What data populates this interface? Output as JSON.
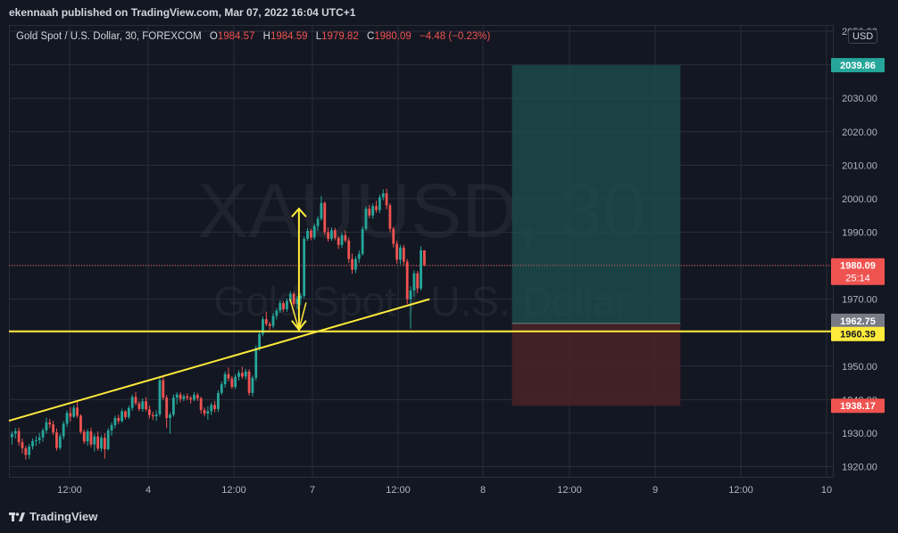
{
  "header": {
    "published_text": "ekennaah published on TradingView.com, Mar 07, 2022 16:04 UTC+1"
  },
  "legend": {
    "symbol": "Gold Spot / U.S. Dollar, 30, FOREXCOM",
    "o_label": "O",
    "o": "1984.57",
    "h_label": "H",
    "h": "1984.59",
    "l_label": "L",
    "l": "1979.82",
    "c_label": "C",
    "c": "1980.09",
    "change": "−4.48 (−0.23%)"
  },
  "watermark": {
    "ticker": "XAUUSD, 30",
    "name": "Gold Spot / U.S. Dollar"
  },
  "currency": "USD",
  "footer": {
    "brand": "TradingView"
  },
  "colors": {
    "up": "#26a69a",
    "down": "#ef5350",
    "trendline": "#ffeb3b",
    "target_zone": "#1d4d4f",
    "stop_zone": "#4a2227",
    "background": "#131722",
    "grid": "#2a2e39"
  },
  "chart_data": {
    "type": "candlestick",
    "symbol": "Gold Spot / U.S. Dollar",
    "interval": "30",
    "ylim": [
      1915,
      2055
    ],
    "y_ticks": [
      1920,
      1930,
      1940,
      1950,
      1960,
      1970,
      1980,
      1990,
      2000,
      2010,
      2020,
      2030,
      2040,
      2050
    ],
    "x_tick_labels": [
      "12:00",
      "4",
      "12:00",
      "7",
      "12:00",
      "8",
      "12:00",
      "9",
      "12:00",
      "10"
    ],
    "price_labels": [
      {
        "text": "2039.86",
        "value": 2039.86,
        "color": "#26a69a",
        "text_color": "#ffffff"
      },
      {
        "text": "1980.09",
        "value": 1980.09,
        "color": "#ef5350",
        "text_color": "#ffffff",
        "sub": "25:14"
      },
      {
        "text": "1962.75",
        "value": 1962.75,
        "color": "#787b86",
        "text_color": "#ffffff"
      },
      {
        "text": "1960.39",
        "value": 1960.39,
        "color": "#ffeb3b",
        "text_color": "#131722"
      },
      {
        "text": "1938.17",
        "value": 1938.17,
        "color": "#ef5350",
        "text_color": "#ffffff"
      }
    ],
    "last_price": 1980.09,
    "horizontal_line": 1960.39,
    "trendline": {
      "from": {
        "bar": 0,
        "price": 1933.7
      },
      "to": {
        "bar": 122,
        "price": 1970.0
      }
    },
    "measure_arrow": {
      "bar": 84,
      "from": 1960.39,
      "to": 1997.0
    },
    "position": {
      "entry": 1962.75,
      "target": 2039.86,
      "stop": 1938.17,
      "start_bar": 146,
      "end_bar": 195
    },
    "candles": [
      [
        1928.8,
        1930.6,
        1926.5,
        1929.8
      ],
      [
        1929.8,
        1931.5,
        1928.4,
        1930.6
      ],
      [
        1930.6,
        1931.6,
        1926.2,
        1927.3
      ],
      [
        1927.3,
        1928.4,
        1923.9,
        1925.5
      ],
      [
        1925.5,
        1926.2,
        1922.1,
        1923.5
      ],
      [
        1923.5,
        1926.8,
        1922.3,
        1926.0
      ],
      [
        1926.0,
        1928.4,
        1925.1,
        1927.6
      ],
      [
        1927.6,
        1929.1,
        1926.2,
        1927.9
      ],
      [
        1927.9,
        1930.1,
        1926.8,
        1928.7
      ],
      [
        1928.7,
        1931.5,
        1927.4,
        1930.8
      ],
      [
        1930.8,
        1934.6,
        1929.8,
        1933.2
      ],
      [
        1933.2,
        1934.3,
        1931.5,
        1932.6
      ],
      [
        1932.6,
        1933.7,
        1929.4,
        1930.2
      ],
      [
        1930.2,
        1931.4,
        1924.8,
        1925.6
      ],
      [
        1925.6,
        1929.8,
        1925.0,
        1929.0
      ],
      [
        1929.0,
        1933.6,
        1928.1,
        1932.8
      ],
      [
        1932.8,
        1936.8,
        1931.8,
        1936.0
      ],
      [
        1936.0,
        1937.8,
        1933.5,
        1934.9
      ],
      [
        1934.9,
        1938.4,
        1934.5,
        1937.6
      ],
      [
        1937.6,
        1939.8,
        1934.5,
        1935.2
      ],
      [
        1935.2,
        1935.6,
        1929.8,
        1930.4
      ],
      [
        1930.4,
        1931.1,
        1926.8,
        1927.5
      ],
      [
        1927.5,
        1931.2,
        1926.2,
        1930.5
      ],
      [
        1930.5,
        1931.6,
        1925.8,
        1926.6
      ],
      [
        1926.6,
        1929.8,
        1924.5,
        1929.0
      ],
      [
        1929.0,
        1930.5,
        1924.7,
        1925.4
      ],
      [
        1925.4,
        1929.4,
        1924.5,
        1928.6
      ],
      [
        1928.6,
        1930.0,
        1922.4,
        1925.2
      ],
      [
        1925.2,
        1931.5,
        1924.8,
        1930.8
      ],
      [
        1930.8,
        1933.2,
        1929.2,
        1932.4
      ],
      [
        1932.4,
        1935.2,
        1931.4,
        1934.5
      ],
      [
        1934.5,
        1935.5,
        1932.8,
        1933.6
      ],
      [
        1933.6,
        1937.3,
        1933.1,
        1936.5
      ],
      [
        1936.5,
        1936.8,
        1934.1,
        1934.8
      ],
      [
        1934.8,
        1938.2,
        1934.2,
        1937.5
      ],
      [
        1937.5,
        1941.5,
        1936.7,
        1940.8
      ],
      [
        1940.8,
        1942.3,
        1938.3,
        1938.9
      ],
      [
        1938.9,
        1939.6,
        1936.5,
        1937.2
      ],
      [
        1937.2,
        1940.4,
        1936.4,
        1939.5
      ],
      [
        1939.5,
        1940.8,
        1936.5,
        1937.1
      ],
      [
        1937.1,
        1938.2,
        1934.4,
        1935.4
      ],
      [
        1935.4,
        1936.4,
        1933.9,
        1935.0
      ],
      [
        1935.0,
        1936.8,
        1933.6,
        1935.6
      ],
      [
        1935.6,
        1946.8,
        1934.9,
        1945.8
      ],
      [
        1945.8,
        1947.3,
        1939.8,
        1940.6
      ],
      [
        1940.6,
        1941.4,
        1931.5,
        1934.5
      ],
      [
        1934.5,
        1936.2,
        1929.8,
        1935.5
      ],
      [
        1935.5,
        1941.6,
        1934.9,
        1940.6
      ],
      [
        1940.6,
        1942.2,
        1938.6,
        1941.5
      ],
      [
        1941.5,
        1942.2,
        1939.2,
        1940.2
      ],
      [
        1940.2,
        1941.6,
        1939.5,
        1941.0
      ],
      [
        1941.0,
        1941.8,
        1939.8,
        1940.5
      ],
      [
        1940.5,
        1941.1,
        1938.8,
        1940.0
      ],
      [
        1940.0,
        1942.2,
        1939.5,
        1941.4
      ],
      [
        1941.4,
        1942.0,
        1939.6,
        1940.4
      ],
      [
        1940.4,
        1940.9,
        1935.8,
        1936.9
      ],
      [
        1936.9,
        1937.7,
        1935.0,
        1935.8
      ],
      [
        1935.8,
        1938.0,
        1934.0,
        1936.5
      ],
      [
        1936.5,
        1939.1,
        1935.4,
        1938.4
      ],
      [
        1938.4,
        1939.6,
        1936.2,
        1937.2
      ],
      [
        1937.2,
        1942.8,
        1936.3,
        1942.0
      ],
      [
        1942.0,
        1945.4,
        1941.4,
        1944.6
      ],
      [
        1944.6,
        1948.4,
        1943.6,
        1947.6
      ],
      [
        1947.6,
        1949.6,
        1945.4,
        1946.3
      ],
      [
        1946.3,
        1947.0,
        1943.2,
        1943.8
      ],
      [
        1943.8,
        1947.6,
        1943.2,
        1946.8
      ],
      [
        1946.8,
        1948.8,
        1945.7,
        1948.0
      ],
      [
        1948.0,
        1949.8,
        1946.2,
        1946.9
      ],
      [
        1946.9,
        1949.2,
        1946.0,
        1948.4
      ],
      [
        1948.4,
        1949.1,
        1941.2,
        1942.0
      ],
      [
        1942.0,
        1947.2,
        1941.0,
        1946.5
      ],
      [
        1946.5,
        1956.2,
        1945.6,
        1955.4
      ],
      [
        1955.4,
        1960.5,
        1954.5,
        1959.6
      ],
      [
        1959.6,
        1964.8,
        1958.9,
        1964.0
      ],
      [
        1964.0,
        1966.3,
        1961.9,
        1962.6
      ],
      [
        1962.6,
        1963.2,
        1960.8,
        1962.0
      ],
      [
        1962.0,
        1965.8,
        1961.3,
        1965.0
      ],
      [
        1965.0,
        1967.4,
        1963.9,
        1966.6
      ],
      [
        1966.6,
        1969.6,
        1965.8,
        1968.8
      ],
      [
        1968.8,
        1969.4,
        1966.3,
        1967.0
      ],
      [
        1967.0,
        1970.3,
        1966.2,
        1969.5
      ],
      [
        1969.5,
        1972.4,
        1968.8,
        1971.6
      ],
      [
        1971.6,
        1972.2,
        1967.9,
        1968.6
      ],
      [
        1968.6,
        1971.0,
        1967.0,
        1970.2
      ],
      [
        1970.2,
        1971.8,
        1968.2,
        1971.0
      ],
      [
        1971.0,
        1988.8,
        1970.2,
        1988.0
      ],
      [
        1988.0,
        1991.2,
        1987.4,
        1990.4
      ],
      [
        1990.4,
        1991.0,
        1987.6,
        1988.4
      ],
      [
        1988.4,
        1992.6,
        1987.8,
        1991.8
      ],
      [
        1991.8,
        1994.8,
        1990.5,
        1994.0
      ],
      [
        1994.0,
        2000.8,
        1993.4,
        1998.7
      ],
      [
        1998.7,
        1999.2,
        1989.2,
        1990.0
      ],
      [
        1990.0,
        1991.4,
        1987.2,
        1988.0
      ],
      [
        1988.0,
        1991.4,
        1987.4,
        1990.6
      ],
      [
        1990.6,
        1991.3,
        1987.6,
        1988.3
      ],
      [
        1988.3,
        1988.9,
        1985.0,
        1986.2
      ],
      [
        1986.2,
        1989.8,
        1985.3,
        1989.1
      ],
      [
        1989.1,
        1990.5,
        1986.9,
        1987.5
      ],
      [
        1987.5,
        1988.4,
        1980.8,
        1982.0
      ],
      [
        1982.0,
        1983.6,
        1977.6,
        1978.8
      ],
      [
        1978.8,
        1982.8,
        1977.8,
        1982.0
      ],
      [
        1982.0,
        1984.6,
        1980.8,
        1983.5
      ],
      [
        1983.5,
        1991.8,
        1983.0,
        1991.0
      ],
      [
        1991.0,
        1997.7,
        1990.4,
        1997.0
      ],
      [
        1997.0,
        1998.2,
        1994.2,
        1995.0
      ],
      [
        1995.0,
        1998.6,
        1994.0,
        1997.8
      ],
      [
        1997.8,
        1999.4,
        1995.8,
        1996.6
      ],
      [
        1996.6,
        2001.2,
        1995.7,
        2000.4
      ],
      [
        2000.4,
        2002.8,
        1999.5,
        2001.6
      ],
      [
        2001.6,
        2003.0,
        1996.8,
        1998.0
      ],
      [
        1998.0,
        1998.6,
        1990.0,
        1991.0
      ],
      [
        1991.0,
        1991.6,
        1985.4,
        1986.5
      ],
      [
        1986.5,
        1987.4,
        1980.6,
        1981.8
      ],
      [
        1981.8,
        1986.2,
        1980.4,
        1985.4
      ],
      [
        1985.4,
        1986.2,
        1980.2,
        1981.2
      ],
      [
        1981.2,
        1982.0,
        1968.6,
        1970.0
      ],
      [
        1970.0,
        1973.8,
        1961.2,
        1972.6
      ],
      [
        1972.6,
        1978.6,
        1970.8,
        1977.7
      ],
      [
        1977.7,
        1978.4,
        1971.8,
        1973.2
      ],
      [
        1973.2,
        1985.8,
        1972.6,
        1984.57
      ],
      [
        1984.57,
        1984.59,
        1979.82,
        1980.09
      ]
    ]
  }
}
